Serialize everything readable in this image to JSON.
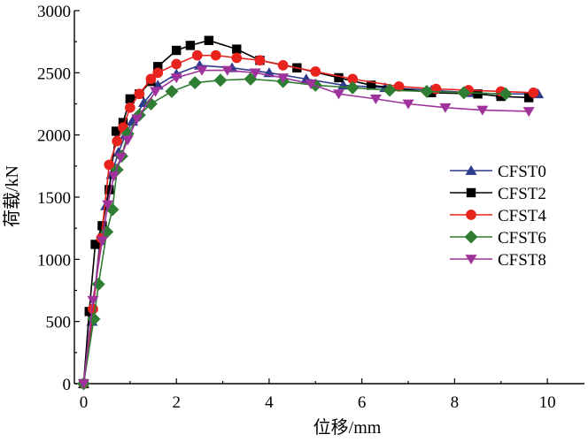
{
  "chart_data": {
    "type": "line",
    "title": "",
    "xlabel": "位移/mm",
    "ylabel": "荷载/kN",
    "xlim": [
      -0.2,
      10.8
    ],
    "ylim": [
      0,
      3000
    ],
    "xticks": [
      0,
      2,
      4,
      6,
      8,
      10
    ],
    "yticks": [
      0,
      500,
      1000,
      1500,
      2000,
      2500,
      3000
    ],
    "grid": false,
    "legend_position": "center-right",
    "series": [
      {
        "name": "CFST0",
        "color": "#2e3a8c",
        "marker": "triangle-up",
        "x": [
          0,
          0.18,
          0.35,
          0.48,
          0.6,
          0.75,
          0.9,
          1.05,
          1.3,
          1.6,
          2.0,
          2.5,
          3.2,
          4.0,
          4.8,
          5.6,
          6.5,
          7.5,
          8.3,
          9.0,
          9.8
        ],
        "y": [
          0,
          500,
          1150,
          1430,
          1680,
          1860,
          2000,
          2110,
          2260,
          2400,
          2490,
          2560,
          2540,
          2500,
          2450,
          2400,
          2380,
          2360,
          2340,
          2330,
          2330
        ]
      },
      {
        "name": "CFST2",
        "color": "#000000",
        "marker": "square",
        "x": [
          0,
          0.12,
          0.25,
          0.4,
          0.55,
          0.7,
          0.85,
          1.0,
          1.2,
          1.45,
          1.6,
          2.0,
          2.3,
          2.7,
          3.3,
          3.8,
          4.6,
          5.5,
          6.2,
          7.5,
          8.5,
          9.0,
          9.6
        ],
        "y": [
          0,
          580,
          1120,
          1270,
          1560,
          2030,
          2100,
          2290,
          2330,
          2430,
          2550,
          2680,
          2720,
          2760,
          2690,
          2600,
          2540,
          2460,
          2400,
          2340,
          2330,
          2310,
          2300
        ]
      },
      {
        "name": "CFST4",
        "color": "#e8231e",
        "marker": "circle",
        "x": [
          0,
          0.2,
          0.38,
          0.55,
          0.72,
          0.85,
          1.0,
          1.2,
          1.45,
          1.6,
          2.0,
          2.45,
          2.85,
          3.3,
          3.8,
          4.3,
          5.0,
          5.8,
          6.8,
          7.6,
          8.3,
          9.0,
          9.7
        ],
        "y": [
          0,
          600,
          1170,
          1760,
          1950,
          2060,
          2220,
          2330,
          2450,
          2500,
          2570,
          2640,
          2640,
          2620,
          2600,
          2560,
          2510,
          2450,
          2390,
          2370,
          2360,
          2350,
          2340
        ]
      },
      {
        "name": "CFST6",
        "color": "#2e7d32",
        "marker": "diamond",
        "x": [
          0,
          0.22,
          0.32,
          0.5,
          0.62,
          0.72,
          0.82,
          0.95,
          1.2,
          1.45,
          1.9,
          2.4,
          2.95,
          3.6,
          4.3,
          5.0,
          5.8,
          6.6,
          7.4,
          8.2,
          9.1
        ],
        "y": [
          0,
          520,
          800,
          1220,
          1400,
          1720,
          1830,
          2010,
          2160,
          2250,
          2350,
          2420,
          2440,
          2450,
          2430,
          2400,
          2380,
          2360,
          2350,
          2340,
          2330
        ]
      },
      {
        "name": "CFST8",
        "color": "#a0329c",
        "marker": "triangle-down",
        "x": [
          0,
          0.2,
          0.4,
          0.52,
          0.65,
          0.8,
          0.95,
          1.15,
          1.55,
          2.0,
          2.55,
          3.1,
          3.7,
          4.3,
          4.9,
          5.5,
          6.3,
          7.0,
          7.8,
          8.6,
          9.6
        ],
        "y": [
          0,
          670,
          1150,
          1440,
          1670,
          1820,
          1960,
          2130,
          2350,
          2460,
          2520,
          2520,
          2500,
          2460,
          2410,
          2330,
          2290,
          2250,
          2220,
          2200,
          2190
        ]
      }
    ]
  }
}
